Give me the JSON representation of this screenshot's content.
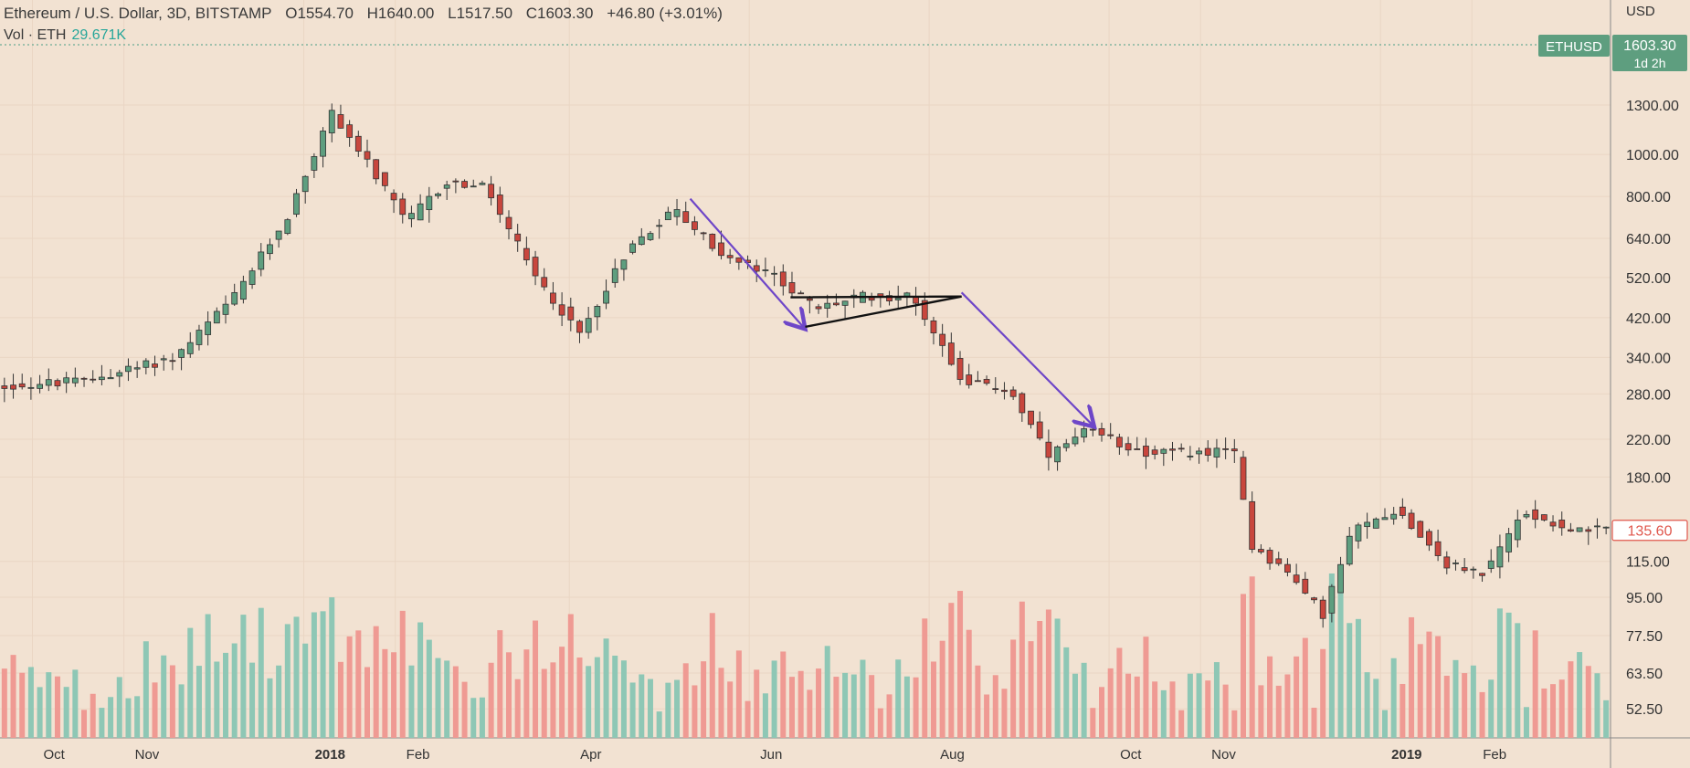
{
  "header": {
    "symbol": "Ethereum / U.S. Dollar, 3D, BITSTAMP",
    "open": "O1554.70",
    "high": "H1640.00",
    "low": "L1517.50",
    "close": "C1603.30",
    "change": "+46.80 (+3.01%)",
    "vol_label": "Vol · ETH",
    "vol_value": "29.671K"
  },
  "price_axis": {
    "unit": "USD",
    "ticks": [
      "1300.00",
      "1000.00",
      "800.00",
      "640.00",
      "520.00",
      "420.00",
      "340.00",
      "280.00",
      "220.00",
      "180.00",
      "115.00",
      "95.00",
      "77.50",
      "63.50",
      "52.50"
    ],
    "badges": [
      {
        "text": "ETHUSD",
        "color": "#5e9e7f"
      },
      {
        "text": "1603.30",
        "sub": "1d 2h",
        "color": "#5e9e7f"
      },
      {
        "text": "135.60",
        "color": "#e0574c"
      }
    ]
  },
  "time_axis": [
    {
      "label": "Oct",
      "bold": false
    },
    {
      "label": "Nov",
      "bold": false
    },
    {
      "label": "2018",
      "bold": true
    },
    {
      "label": "Feb",
      "bold": false
    },
    {
      "label": "Apr",
      "bold": false
    },
    {
      "label": "Jun",
      "bold": false
    },
    {
      "label": "Aug",
      "bold": false
    },
    {
      "label": "Oct",
      "bold": false
    },
    {
      "label": "Nov",
      "bold": false
    },
    {
      "label": "2019",
      "bold": true
    },
    {
      "label": "Feb",
      "bold": false
    }
  ],
  "colors": {
    "up": "#5e9e7f",
    "down": "#c8463d",
    "vol_up": "#8ec7b5",
    "vol_down": "#ef9a93",
    "arrow": "#6e46c8",
    "pattern": "#111111",
    "background": "#f2e2d2"
  },
  "chart_data": {
    "type": "candlestick",
    "title": "Ethereum / U.S. Dollar, 3D, BITSTAMP",
    "y_scale": "log",
    "ylim": [
      45,
      1800
    ],
    "x_range": [
      "2017-09-20",
      "2019-03-20"
    ],
    "interval_days": 3,
    "anchors": [
      {
        "date": "2017-09-20",
        "price": 290
      },
      {
        "date": "2017-10-20",
        "price": 300
      },
      {
        "date": "2017-11-20",
        "price": 340
      },
      {
        "date": "2017-12-10",
        "price": 470
      },
      {
        "date": "2017-12-28",
        "price": 720
      },
      {
        "date": "2018-01-12",
        "price": 1250
      },
      {
        "date": "2018-01-20",
        "price": 1050
      },
      {
        "date": "2018-02-06",
        "price": 700
      },
      {
        "date": "2018-02-20",
        "price": 860
      },
      {
        "date": "2018-03-05",
        "price": 840
      },
      {
        "date": "2018-03-22",
        "price": 520
      },
      {
        "date": "2018-04-06",
        "price": 385
      },
      {
        "date": "2018-04-22",
        "price": 600
      },
      {
        "date": "2018-05-08",
        "price": 750
      },
      {
        "date": "2018-05-25",
        "price": 580
      },
      {
        "date": "2018-06-12",
        "price": 520
      },
      {
        "date": "2018-06-25",
        "price": 440
      },
      {
        "date": "2018-07-10",
        "price": 470
      },
      {
        "date": "2018-07-28",
        "price": 470
      },
      {
        "date": "2018-08-14",
        "price": 300
      },
      {
        "date": "2018-08-30",
        "price": 285
      },
      {
        "date": "2018-09-12",
        "price": 200
      },
      {
        "date": "2018-09-25",
        "price": 230
      },
      {
        "date": "2018-10-15",
        "price": 205
      },
      {
        "date": "2018-11-14",
        "price": 205
      },
      {
        "date": "2018-11-20",
        "price": 125
      },
      {
        "date": "2018-12-01",
        "price": 110
      },
      {
        "date": "2018-12-14",
        "price": 87
      },
      {
        "date": "2018-12-24",
        "price": 135
      },
      {
        "date": "2019-01-08",
        "price": 152
      },
      {
        "date": "2019-01-25",
        "price": 113
      },
      {
        "date": "2019-02-07",
        "price": 108
      },
      {
        "date": "2019-02-20",
        "price": 150
      },
      {
        "date": "2019-03-10",
        "price": 135
      },
      {
        "date": "2019-03-20",
        "price": 136
      }
    ],
    "annotations": [
      {
        "type": "arrow",
        "from": {
          "date": "2018-05-12",
          "price": 790
        },
        "to": {
          "date": "2018-06-20",
          "price": 395
        }
      },
      {
        "type": "arrow",
        "from": {
          "date": "2018-08-12",
          "price": 480
        },
        "to": {
          "date": "2018-09-26",
          "price": 235
        }
      },
      {
        "type": "triangle",
        "points": [
          {
            "date": "2018-06-15",
            "price": 468
          },
          {
            "date": "2018-08-12",
            "price": 470
          },
          {
            "date": "2018-06-20",
            "price": 400
          }
        ]
      }
    ]
  }
}
